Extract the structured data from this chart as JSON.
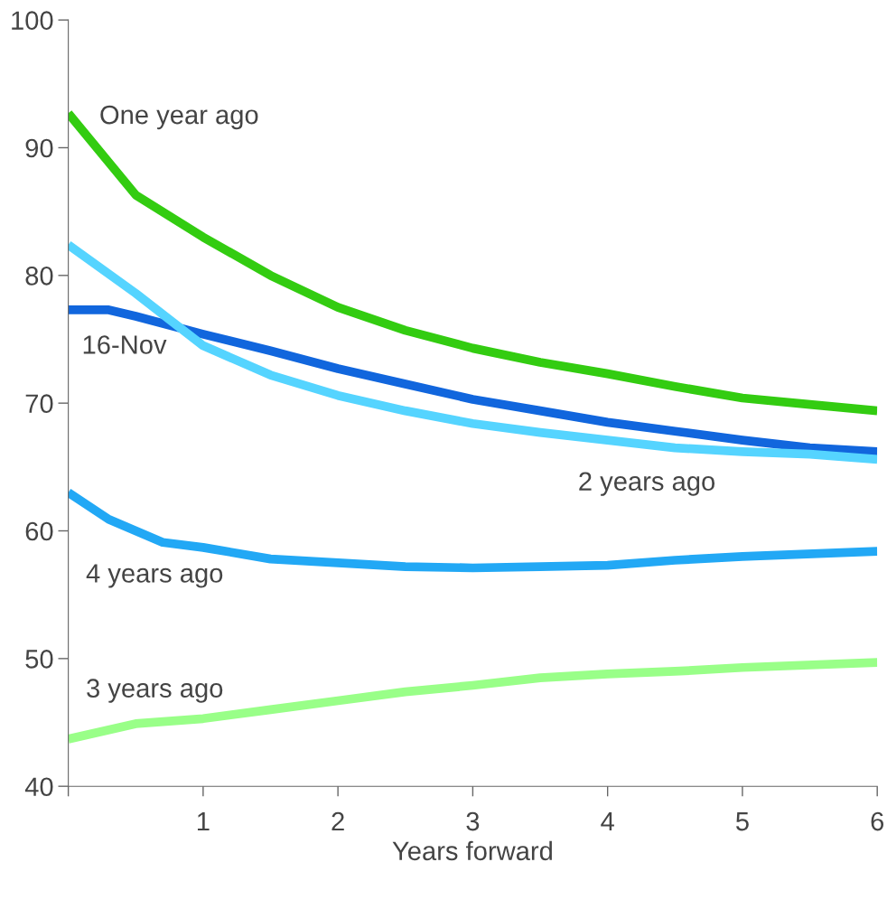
{
  "chart_data": {
    "type": "line",
    "xlabel": "Years forward",
    "xlim": [
      0,
      6
    ],
    "ylim": [
      40,
      100
    ],
    "xticks": [
      {
        "value": 0,
        "label": null
      },
      1,
      2,
      3,
      4,
      5,
      6
    ],
    "yticks": [
      40,
      50,
      60,
      70,
      80,
      90,
      100
    ],
    "grid": false,
    "legend": false,
    "marker": "none",
    "line_style": "solid",
    "series": [
      {
        "name": "One year ago",
        "color": "#33cc11",
        "x": [
          0,
          0.5,
          1,
          1.5,
          2,
          2.5,
          3,
          3.5,
          4,
          4.5,
          5,
          5.5,
          6
        ],
        "values": [
          92.7,
          86.3,
          83.0,
          80.0,
          77.5,
          75.7,
          74.3,
          73.2,
          72.3,
          71.3,
          70.4,
          69.9,
          69.4
        ]
      },
      {
        "name": "16-Nov",
        "color": "#1166dd",
        "x": [
          0,
          0.3,
          0.5,
          1,
          1.5,
          2,
          2.5,
          3,
          3.5,
          4,
          4.5,
          5,
          5.5,
          6
        ],
        "values": [
          77.3,
          77.3,
          76.8,
          75.4,
          74.1,
          72.7,
          71.5,
          70.3,
          69.4,
          68.5,
          67.8,
          67.1,
          66.5,
          66.2
        ]
      },
      {
        "name": "2 years ago",
        "color": "#55d4ff",
        "x": [
          0,
          0.5,
          1,
          1.5,
          2,
          2.5,
          3,
          3.5,
          4,
          4.5,
          5,
          5.5,
          6
        ],
        "values": [
          82.4,
          78.6,
          74.5,
          72.2,
          70.6,
          69.4,
          68.4,
          67.7,
          67.1,
          66.5,
          66.2,
          66.0,
          65.6
        ]
      },
      {
        "name": "4 years ago",
        "color": "#22a8f5",
        "x": [
          0,
          0.3,
          0.7,
          1,
          1.5,
          2,
          2.5,
          3,
          3.5,
          4,
          4.5,
          5,
          6
        ],
        "values": [
          63.0,
          60.9,
          59.1,
          58.7,
          57.8,
          57.5,
          57.2,
          57.1,
          57.2,
          57.3,
          57.7,
          58.0,
          58.4
        ]
      },
      {
        "name": "3 years ago",
        "color": "#99ff88",
        "x": [
          0,
          0.5,
          1,
          1.5,
          2,
          2.5,
          3,
          3.5,
          4,
          4.5,
          5,
          6
        ],
        "values": [
          43.7,
          44.9,
          45.3,
          46.0,
          46.7,
          47.4,
          47.9,
          48.5,
          48.8,
          49.0,
          49.3,
          49.7
        ]
      }
    ]
  }
}
